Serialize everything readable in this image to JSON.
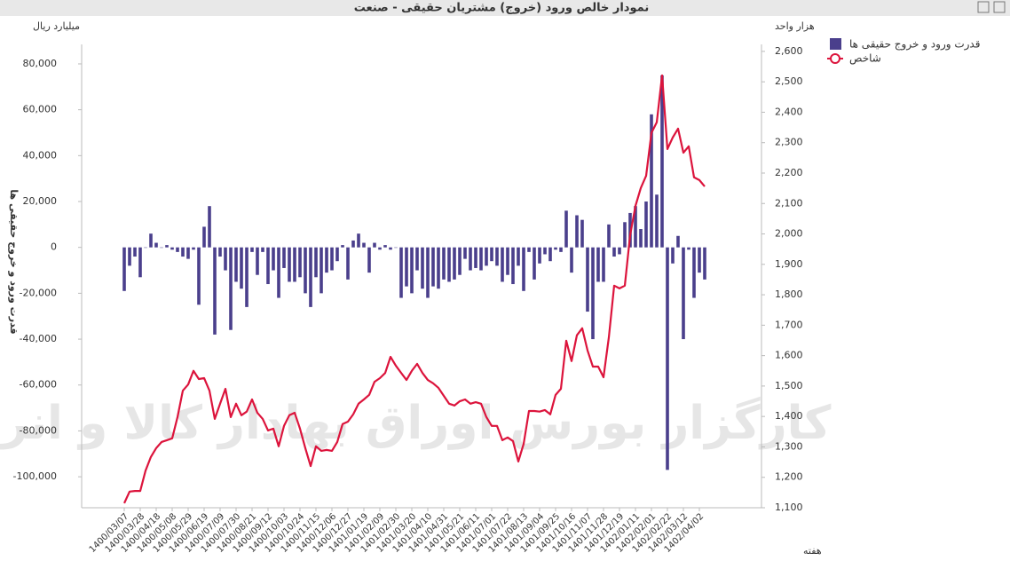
{
  "chart_data": {
    "type": "combo",
    "title": "نمودار خالص ورود (خروج) مشتریان حقیقی - صنعت",
    "y_unit": "میلیارد ریال",
    "y2_unit": "هزار واحد",
    "y_label": "قدرت ورود و خروج حقیقی ها",
    "x_label": "هفته",
    "watermark": "کارگزار بورس اوراق بهادار کالا و انرژی",
    "categories": [
      "1400/03/07",
      null,
      null,
      "1400/03/28",
      null,
      null,
      "1400/04/18",
      null,
      null,
      "1400/05/08",
      null,
      null,
      "1400/05/29",
      null,
      null,
      "1400/06/19",
      null,
      null,
      "1400/07/09",
      null,
      null,
      "1400/07/30",
      null,
      null,
      "1400/08/21",
      null,
      null,
      "1400/09/12",
      null,
      null,
      "1400/10/03",
      null,
      null,
      "1400/10/24",
      null,
      null,
      "1400/11/15",
      null,
      null,
      "1400/12/06",
      null,
      null,
      "1400/12/27",
      null,
      null,
      "1401/01/19",
      null,
      null,
      "1401/02/09",
      null,
      null,
      "1401/02/30",
      null,
      null,
      "1401/03/20",
      null,
      null,
      "1401/04/10",
      null,
      null,
      "1401/04/31",
      null,
      null,
      "1401/05/21",
      null,
      null,
      "1401/06/11",
      null,
      null,
      "1401/07/01",
      null,
      null,
      "1401/07/22",
      null,
      null,
      "1401/08/13",
      null,
      null,
      "1401/09/04",
      null,
      null,
      "1401/09/25",
      null,
      null,
      "1401/10/16",
      null,
      null,
      "1401/11/07",
      null,
      null,
      "1401/11/28",
      null,
      null,
      "1401/12/19",
      null,
      null,
      "1402/01/11",
      null,
      null,
      "1402/02/01",
      null,
      null,
      "1402/02/22",
      null,
      null,
      "1402/03/12",
      null,
      null,
      "1402/04/02",
      null
    ],
    "series": [
      {
        "name": "قدرت ورود و خروج حقیقی ها",
        "type": "bar",
        "color": "#4a3f8c",
        "values": [
          -19000,
          -8000,
          -4000,
          -13000,
          0,
          6000,
          2000,
          0,
          1000,
          -1000,
          -2000,
          -4000,
          -5000,
          -1000,
          -25000,
          9000,
          18000,
          -38000,
          -4000,
          -10000,
          -36000,
          -15000,
          -18000,
          -26000,
          -2000,
          -12000,
          -2000,
          -16000,
          -10000,
          -22000,
          -9000,
          -15000,
          -15000,
          -13000,
          -20000,
          -26000,
          -13000,
          -20000,
          -11000,
          -10000,
          -6000,
          1000,
          -14000,
          3000,
          6000,
          2000,
          -11000,
          2000,
          -1000,
          1000,
          -1000,
          0,
          -22000,
          -17000,
          -20000,
          -10000,
          -18000,
          -22000,
          -17000,
          -18000,
          -14000,
          -15000,
          -14000,
          -12000,
          -5000,
          -10000,
          -9000,
          -10000,
          -8000,
          -6000,
          -8000,
          -15000,
          -12000,
          -16000,
          -8000,
          -19000,
          -2000,
          -14000,
          -7000,
          -3000,
          -6000,
          -1000,
          -2000,
          16000,
          -11000,
          14000,
          12000,
          -28000,
          -40000,
          -15000,
          -15000,
          10000,
          -4000,
          -3000,
          11000,
          15000,
          18000,
          8000,
          20000,
          58000,
          23000,
          75000,
          -97000,
          -7000,
          5000,
          -40000,
          -1000,
          -22000,
          -11000,
          -14000
        ]
      },
      {
        "name": "شاخص",
        "type": "line",
        "axis": "y2",
        "color": "#dc143c",
        "values": [
          1115,
          1153,
          1155,
          1155,
          1222,
          1267,
          1296,
          1316,
          1322,
          1328,
          1398,
          1485,
          1505,
          1550,
          1523,
          1526,
          1485,
          1392,
          1442,
          1491,
          1398,
          1442,
          1404,
          1416,
          1456,
          1412,
          1392,
          1354,
          1360,
          1302,
          1369,
          1404,
          1412,
          1360,
          1296,
          1237,
          1302,
          1287,
          1290,
          1287,
          1316,
          1375,
          1383,
          1407,
          1442,
          1456,
          1471,
          1514,
          1526,
          1543,
          1596,
          1567,
          1543,
          1520,
          1550,
          1573,
          1543,
          1520,
          1509,
          1494,
          1468,
          1442,
          1436,
          1450,
          1456,
          1442,
          1447,
          1442,
          1398,
          1369,
          1369,
          1322,
          1331,
          1319,
          1252,
          1310,
          1418,
          1418,
          1416,
          1421,
          1407,
          1471,
          1491,
          1649,
          1582,
          1667,
          1690,
          1617,
          1564,
          1564,
          1529,
          1660,
          1830,
          1821,
          1830,
          1996,
          2092,
          2151,
          2191,
          2332,
          2367,
          2521,
          2279,
          2317,
          2346,
          2267,
          2288,
          2186,
          2177,
          2156
        ]
      }
    ],
    "ylim": [
      -113500,
      88500
    ],
    "yticks": [
      {
        "value": -100000,
        "label": "-100,000"
      },
      {
        "value": -80000,
        "label": "-80,000"
      },
      {
        "value": -60000,
        "label": "-60,000"
      },
      {
        "value": -40000,
        "label": "-40,000"
      },
      {
        "value": -20000,
        "label": "-20,000"
      },
      0,
      {
        "value": 20000,
        "label": "20,000"
      },
      {
        "value": 40000,
        "label": "40,000"
      },
      {
        "value": 60000,
        "label": "60,000"
      },
      {
        "value": 80000,
        "label": "80,000"
      }
    ],
    "y2lim": [
      1100,
      2623
    ],
    "y2ticks": [
      {
        "value": 1100,
        "label": "1,100"
      },
      {
        "value": 1200,
        "label": "1,200"
      },
      {
        "value": 1300,
        "label": "1,300"
      },
      {
        "value": 1400,
        "label": "1,400"
      },
      {
        "value": 1500,
        "label": "1,500"
      },
      {
        "value": 1600,
        "label": "1,600"
      },
      {
        "value": 1700,
        "label": "1,700"
      },
      {
        "value": 1800,
        "label": "1,800"
      },
      {
        "value": 1900,
        "label": "1,900"
      },
      {
        "value": 2000,
        "label": "2,000"
      },
      {
        "value": 2100,
        "label": "2,100"
      },
      {
        "value": 2200,
        "label": "2,200"
      },
      {
        "value": 2300,
        "label": "2,300"
      },
      {
        "value": 2400,
        "label": "2,400"
      },
      {
        "value": 2500,
        "label": "2,500"
      },
      {
        "value": 2600,
        "label": "2,600"
      }
    ]
  }
}
